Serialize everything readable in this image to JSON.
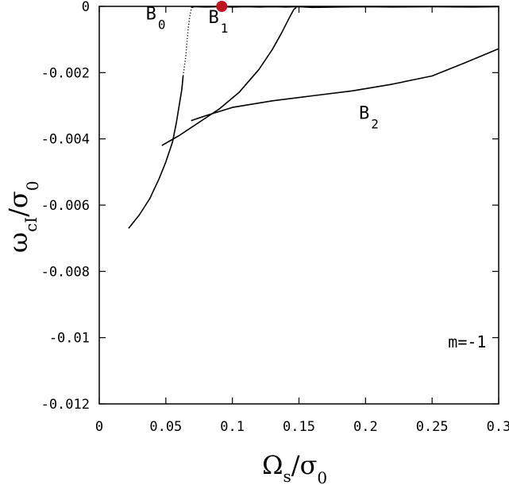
{
  "chart_data": {
    "type": "line",
    "title": "",
    "xlabel": {
      "main": "Ω",
      "sub": "s",
      "sep": "/σ",
      "sub2": "0"
    },
    "ylabel": {
      "main": "ω",
      "sub": "cI",
      "sep": "/σ",
      "sub2": "0"
    },
    "xlim": [
      0,
      0.3
    ],
    "ylim": [
      -0.012,
      0
    ],
    "xticks": [
      0,
      0.05,
      0.1,
      0.15,
      0.2,
      0.25,
      0.3
    ],
    "xtick_labels": [
      "0",
      "0.05",
      "0.1",
      "0.15",
      "0.2",
      "0.25",
      "0.3"
    ],
    "yticks": [
      0,
      -0.002,
      -0.004,
      -0.006,
      -0.008,
      -0.01,
      -0.012
    ],
    "ytick_labels": [
      "0",
      "-0.002",
      "-0.004",
      "-0.006",
      "-0.008",
      "-0.01",
      "-0.012"
    ],
    "grid": false,
    "series": [
      {
        "name": "B0",
        "label_main": "B",
        "label_sub": "0",
        "style": "solid",
        "x": [
          0.022,
          0.03,
          0.038,
          0.045,
          0.05,
          0.055,
          0.058,
          0.06,
          0.062,
          0.063
        ],
        "y": [
          -0.0067,
          -0.0063,
          -0.0058,
          -0.0052,
          -0.0047,
          -0.0041,
          -0.0035,
          -0.003,
          -0.0025,
          -0.0021
        ]
      },
      {
        "name": "B0",
        "label_main": "",
        "label_sub": "",
        "style": "dotted",
        "x": [
          0.063,
          0.065,
          0.066,
          0.067,
          0.068,
          0.069,
          0.0695
        ],
        "y": [
          -0.0021,
          -0.0015,
          -0.001,
          -0.0006,
          -0.0003,
          -0.0001,
          -3e-05
        ]
      },
      {
        "name": "B1",
        "label_main": "B",
        "label_sub": "1",
        "style": "solid",
        "x": [
          0.047,
          0.06,
          0.075,
          0.09,
          0.105,
          0.12,
          0.13,
          0.137,
          0.142,
          0.146,
          0.148
        ],
        "y": [
          -0.0042,
          -0.0039,
          -0.0035,
          -0.0031,
          -0.0026,
          -0.0019,
          -0.0013,
          -0.0008,
          -0.0004,
          -0.0001,
          -3e-05
        ]
      },
      {
        "name": "B2",
        "label_main": "B",
        "label_sub": "2",
        "style": "solid",
        "x": [
          0.069,
          0.08,
          0.1,
          0.13,
          0.16,
          0.19,
          0.22,
          0.25,
          0.275,
          0.3
        ],
        "y": [
          -0.00345,
          -0.0033,
          -0.00305,
          -0.00285,
          -0.0027,
          -0.00255,
          -0.00235,
          -0.0021,
          -0.0017,
          -0.00128
        ]
      },
      {
        "name": "",
        "label_main": "",
        "label_sub": "",
        "style": "solid",
        "x": [
          0.069,
          0.072,
          0.08,
          0.09,
          0.1,
          0.11,
          0.12,
          0.13,
          0.14,
          0.15,
          0.16,
          0.18,
          0.2,
          0.22,
          0.25,
          0.28,
          0.3
        ],
        "y": [
          -3e-05,
          -1e-05,
          -2e-05,
          -1e-05,
          -2e-05,
          -1e-05,
          -2e-05,
          -1e-05,
          -2e-05,
          -1e-05,
          -3e-05,
          -2e-05,
          -1e-05,
          -2e-05,
          -1e-05,
          -2e-05,
          -1e-05
        ]
      }
    ],
    "marker": {
      "x": 0.092,
      "y": 0,
      "color": "#c0141c"
    },
    "annotations": [
      {
        "text": "m=-1",
        "x": 0.262,
        "y": -0.0103
      }
    ]
  }
}
